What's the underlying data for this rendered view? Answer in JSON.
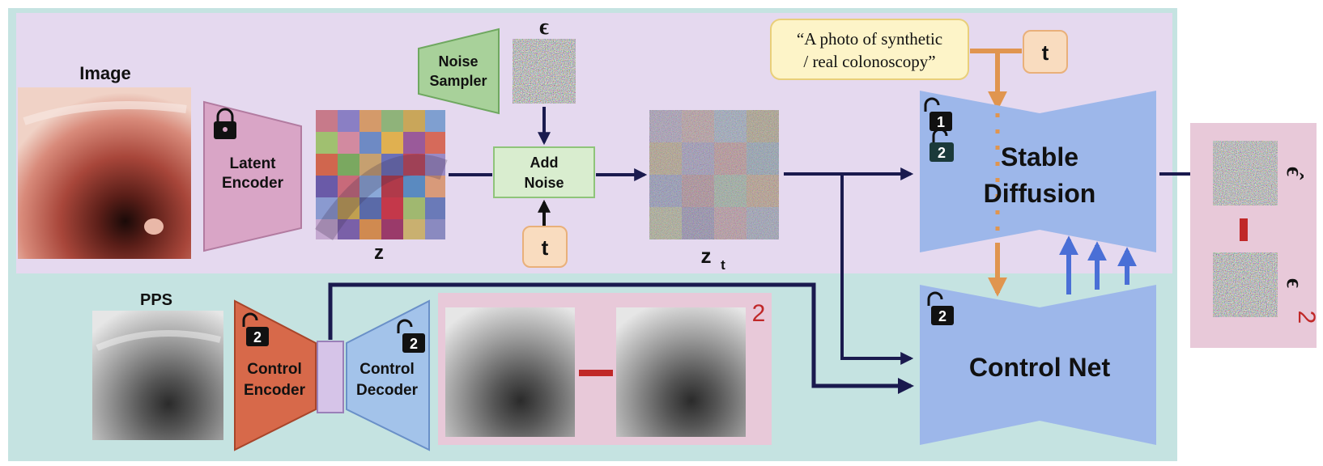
{
  "input": {
    "image_label": "Image",
    "pps_label": "PPS"
  },
  "latent_encoder": {
    "line1": "Latent",
    "line2": "Encoder"
  },
  "latent": {
    "z_label": "z",
    "zt_label": "z",
    "zt_subscript": "t"
  },
  "noise": {
    "sampler_line1": "Noise",
    "sampler_line2": "Sampler",
    "epsilon_label": "ϵ",
    "add_line1": "Add",
    "add_line2": "Noise",
    "timestep_label": "t"
  },
  "prompt": {
    "line1": "“A photo of synthetic",
    "line2": "/ real colonoscopy”",
    "timestep_label": "t"
  },
  "stable_diffusion": {
    "line1": "Stable",
    "line2": "Diffusion",
    "badge_stage1": "1",
    "badge_stage2": "2"
  },
  "control_net": {
    "label": "Control Net",
    "badge": "2"
  },
  "control_encoder": {
    "line1": "Control",
    "line2": "Encoder",
    "badge": "2"
  },
  "control_decoder": {
    "line1": "Control",
    "line2": "Decoder",
    "badge": "2"
  },
  "reconstruction_loss": {
    "stage_label": "2"
  },
  "output": {
    "epsilon_hat_label": "ϵ̂",
    "epsilon_label": "ϵ",
    "stage_label": "2"
  },
  "colors": {
    "stage1_bg": "#e5d9ef",
    "stage2_bg": "#c5e3e1",
    "latent_encoder": "#d9a5c6",
    "noise_sampler": "#a8d19a",
    "add_noise": "#d9edcf",
    "timestep": "#f9dcbf",
    "prompt": "#fdf4c8",
    "diffusion": "#9db7ea",
    "control_encoder": "#d7694a",
    "control_decoder": "#a3c3ea",
    "loss_panel": "#e8c9d9",
    "arrow": "#1a1a4e",
    "text_arrow": "#e0954f",
    "accent_red": "#c02828"
  }
}
